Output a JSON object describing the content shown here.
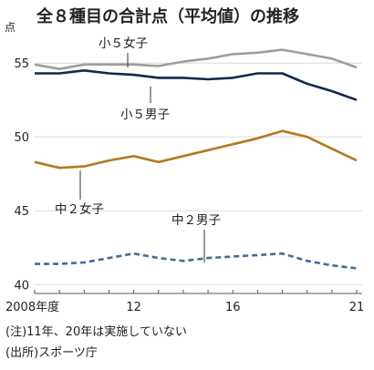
{
  "chart_data": {
    "type": "line",
    "title": "全８種目の合計点（平均値）の推移",
    "ylabel": "点",
    "x": [
      2008,
      2009,
      2010,
      2011,
      2012,
      2013,
      2014,
      2015,
      2016,
      2017,
      2018,
      2019,
      2020,
      2021
    ],
    "xtick_labels": [
      {
        "x": 2008,
        "label": "2008年度"
      },
      {
        "x": 2012,
        "label": "12"
      },
      {
        "x": 2016,
        "label": "16"
      },
      {
        "x": 2021,
        "label": "21"
      }
    ],
    "yticks": [
      40,
      45,
      50,
      55
    ],
    "ylim": [
      39.4,
      56.8
    ],
    "grid": true,
    "series": [
      {
        "name": "小５女子",
        "color": "#9e9e9e",
        "dashed": false,
        "values": [
          54.9,
          54.6,
          54.9,
          54.9,
          54.9,
          54.8,
          55.1,
          55.3,
          55.6,
          55.7,
          55.9,
          55.6,
          55.3,
          54.7
        ]
      },
      {
        "name": "小５男子",
        "color": "#0f2a4a",
        "dashed": false,
        "values": [
          54.3,
          54.3,
          54.5,
          54.3,
          54.2,
          54.0,
          54.0,
          53.9,
          54.0,
          54.3,
          54.3,
          53.6,
          53.1,
          52.5
        ]
      },
      {
        "name": "中２女子",
        "color": "#b27b1f",
        "dashed": false,
        "values": [
          48.3,
          47.9,
          48.0,
          48.4,
          48.7,
          48.3,
          48.7,
          49.1,
          49.5,
          49.9,
          50.4,
          50.0,
          49.2,
          48.4
        ]
      },
      {
        "name": "中２男子",
        "color": "#3f6c96",
        "dashed": true,
        "values": [
          41.4,
          41.4,
          41.5,
          41.8,
          42.1,
          41.8,
          41.6,
          41.8,
          41.9,
          42.0,
          42.1,
          41.6,
          41.3,
          41.1
        ]
      }
    ],
    "annotations": [
      "(注)11年、20年は実施していない",
      "(出所)スポーツ庁"
    ]
  }
}
